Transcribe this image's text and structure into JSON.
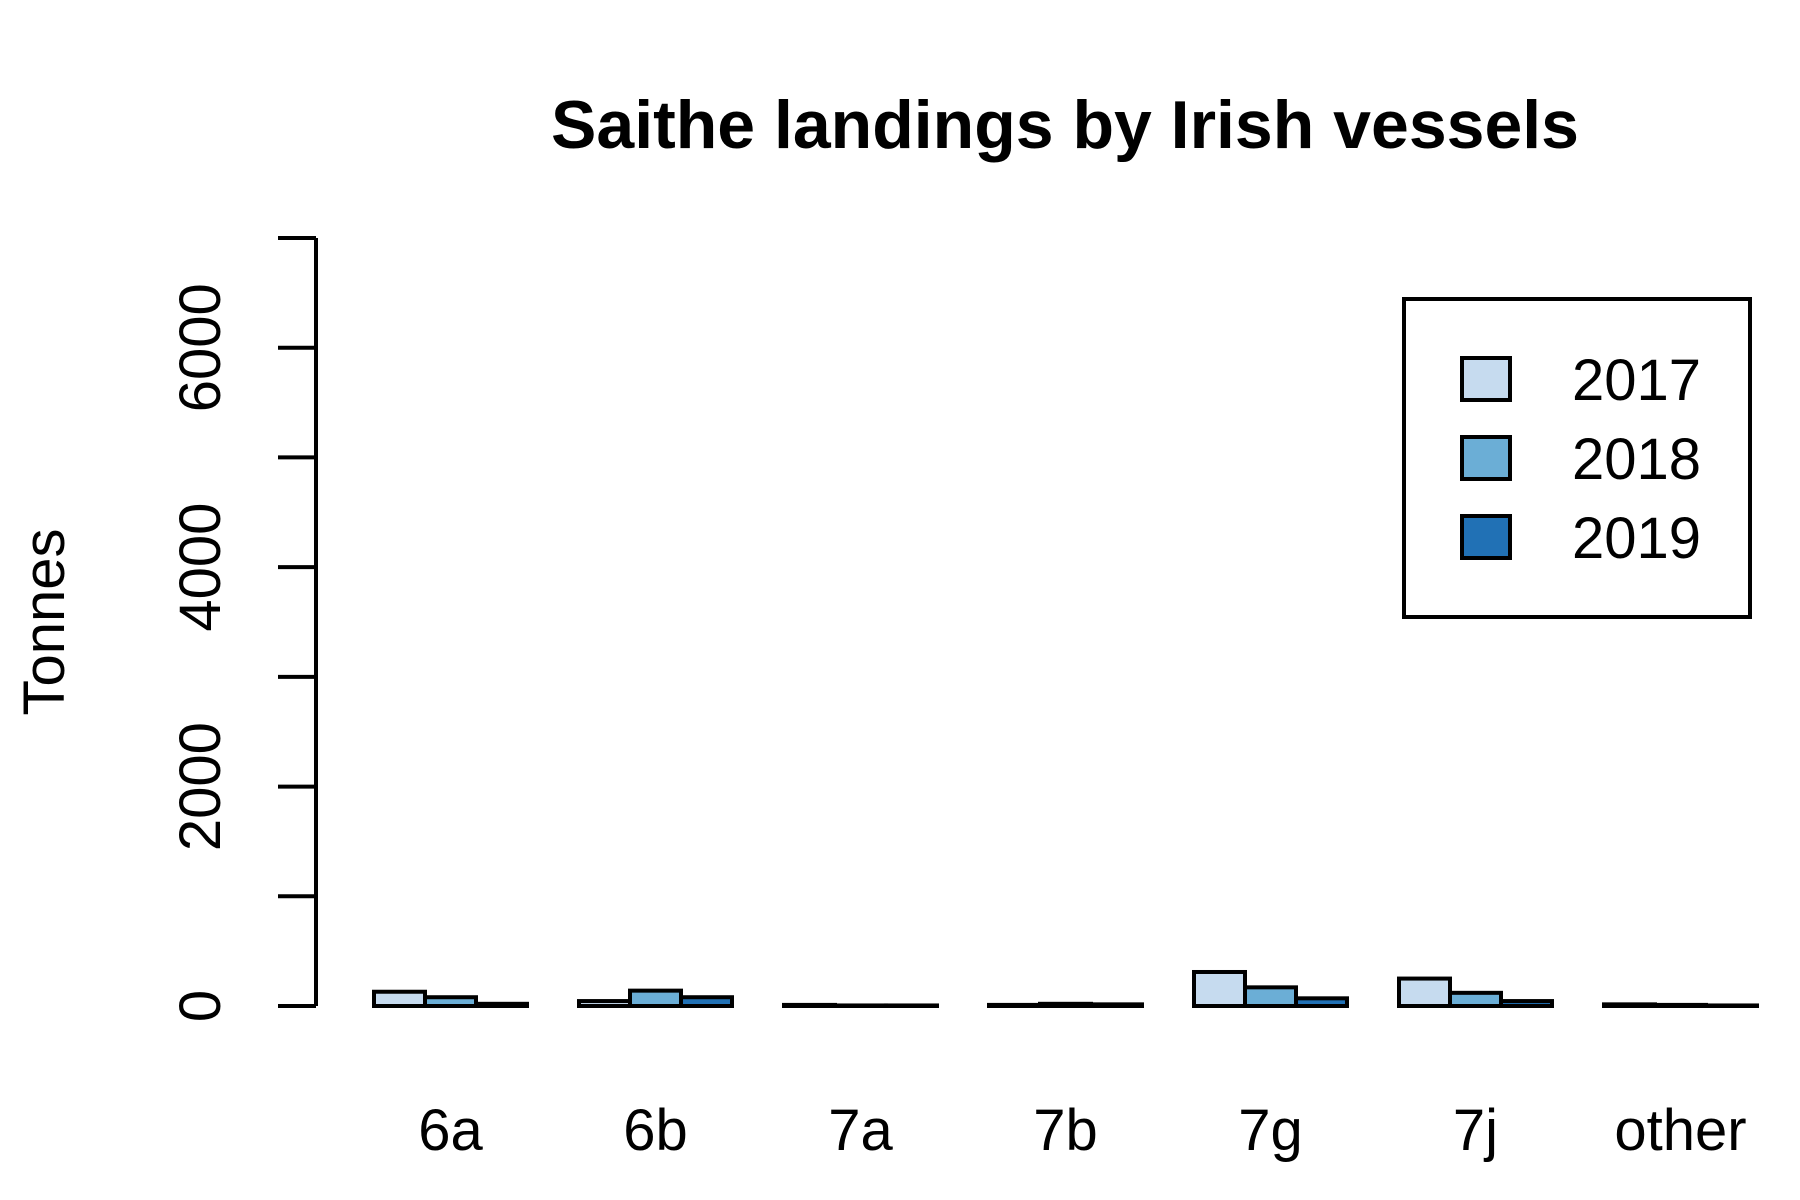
{
  "chart_data": {
    "type": "bar",
    "title": "Saithe landings by Irish vessels",
    "xlabel": "",
    "ylabel": "Tonnes",
    "categories": [
      "6a",
      "6b",
      "7a",
      "7b",
      "7g",
      "7j",
      "other"
    ],
    "series": [
      {
        "name": "2017",
        "color": "#c6dbef",
        "values": [
          130,
          45,
          10,
          10,
          310,
          250,
          15
        ]
      },
      {
        "name": "2018",
        "color": "#6baed6",
        "values": [
          80,
          140,
          5,
          20,
          170,
          120,
          10
        ]
      },
      {
        "name": "2019",
        "color": "#2171b5",
        "values": [
          20,
          80,
          5,
          15,
          70,
          45,
          5
        ]
      }
    ],
    "ylim": [
      0,
      7000
    ],
    "yticks": [
      0,
      1000,
      2000,
      3000,
      4000,
      5000,
      6000,
      7000
    ],
    "ytick_labels": [
      "0",
      "",
      "2000",
      "",
      "4000",
      "",
      "6000",
      ""
    ],
    "grid": false,
    "legend_position": "top-right",
    "bar_style": "grouped"
  }
}
